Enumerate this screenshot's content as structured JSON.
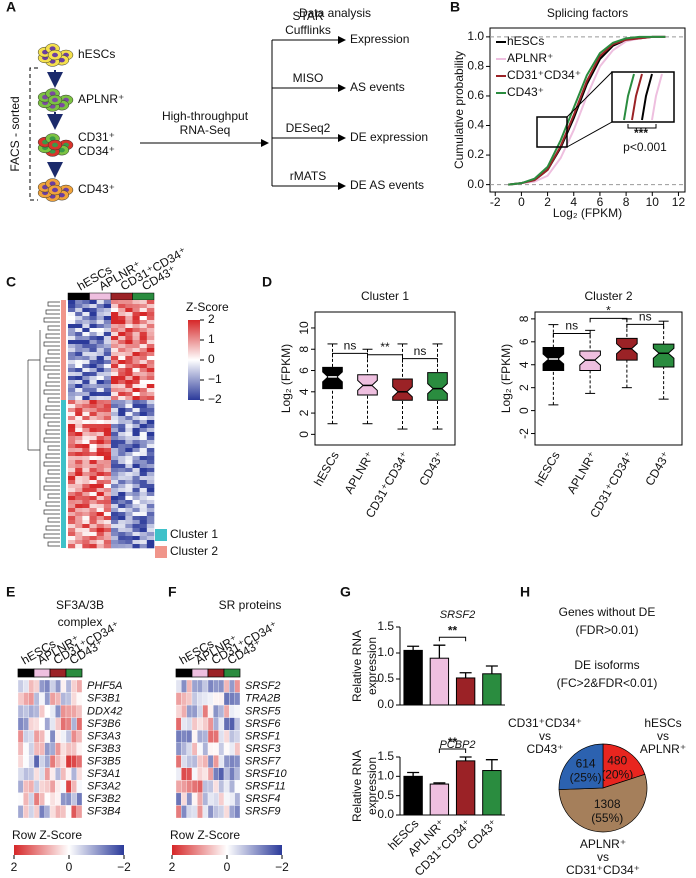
{
  "panel_labels": [
    "A",
    "B",
    "C",
    "D",
    "E",
    "F",
    "G",
    "H"
  ],
  "workflow": {
    "cells": [
      {
        "lines": [
          "hESCs"
        ]
      },
      {
        "lines": [
          "APLNR⁺"
        ]
      },
      {
        "lines": [
          "CD31⁺",
          "CD34⁺"
        ]
      },
      {
        "lines": [
          "CD43⁺"
        ]
      }
    ],
    "sort_label": "FACS - sorted",
    "method_lines": [
      "High-throughput",
      "RNA-Seq"
    ],
    "title": "Data analysis",
    "steps": [
      {
        "tool_lines": [
          "STAR",
          "Cufflinks"
        ],
        "output": "Expression"
      },
      {
        "tool_lines": [
          "MISO"
        ],
        "output": "AS events"
      },
      {
        "tool_lines": [
          "DESeq2"
        ],
        "output": "DE expression"
      },
      {
        "tool_lines": [
          "rMATS"
        ],
        "output": "DE AS events"
      }
    ]
  },
  "heatmap_c": {
    "columns": [
      "hESCs",
      "APLNR⁺",
      "CD31⁺CD34⁺",
      "CD43⁺"
    ],
    "column_colors": [
      "#000000",
      "#eebfdf",
      "#9b2226",
      "#2a8c3f"
    ],
    "colorbar_title": "Z-Score",
    "colorbar_ticks": [
      2,
      1,
      0,
      {
        "value": -1,
        "label": "−1"
      },
      {
        "value": -2,
        "label": "−2"
      }
    ],
    "clusters": [
      {
        "name": "Cluster 1",
        "color": "#3fc1c9"
      },
      {
        "name": "Cluster 2",
        "color": "#f0958a"
      }
    ]
  },
  "heatmap_e": {
    "title_lines": [
      "SF3A/3B",
      "complex"
    ],
    "columns": [
      "hESCs",
      "APLNR⁺",
      "CD31⁺CD34⁺",
      "CD43⁺"
    ],
    "genes": [
      "PHF5A",
      "SF3B1",
      "DDX42",
      "SF3B6",
      "SF3A3",
      "SF3B3",
      "SF3B5",
      "SF3A1",
      "SF3A2",
      "SF3B2",
      "SF3B4"
    ],
    "colorbar_title": "Row Z-Score",
    "colorbar_ticks": [
      2,
      0,
      {
        "value": -2,
        "label": "−2"
      }
    ]
  },
  "heatmap_f": {
    "title_lines": [
      "SR proteins"
    ],
    "columns": [
      "hESCs",
      "APLNR⁺",
      "CD31⁺CD34⁺",
      "CD43⁺"
    ],
    "genes": [
      "SRSF2",
      "TRA2B",
      "SRSF5",
      "SRSF6",
      "SRSF1",
      "SRSF3",
      "SRSF7",
      "SRSF10",
      "SRSF11",
      "SRSF4",
      "SRSF9"
    ],
    "colorbar_title": "Row Z-Score",
    "colorbar_ticks": [
      2,
      0,
      {
        "value": -2,
        "label": "−2"
      }
    ]
  },
  "chart_data": [
    {
      "type": "line",
      "title": "Splicing  factors",
      "xlabel": "Log₂ (FPKM)",
      "ylabel": "Cumulative probability",
      "x": [
        -1,
        0,
        1,
        2,
        3,
        4,
        5,
        6,
        7,
        8,
        9,
        10,
        11
      ],
      "series": [
        {
          "name": "hESCs",
          "color": "#000000",
          "values": [
            0,
            0.01,
            0.03,
            0.1,
            0.25,
            0.45,
            0.68,
            0.85,
            0.94,
            0.98,
            0.99,
            1,
            1
          ]
        },
        {
          "name": "APLNR⁺",
          "color": "#eebfdf",
          "values": [
            0,
            0.01,
            0.02,
            0.06,
            0.18,
            0.37,
            0.6,
            0.8,
            0.91,
            0.97,
            0.99,
            1,
            1
          ]
        },
        {
          "name": "CD31⁺CD34⁺",
          "color": "#9b2226",
          "values": [
            0,
            0.01,
            0.03,
            0.1,
            0.26,
            0.47,
            0.7,
            0.87,
            0.95,
            0.98,
            0.99,
            1,
            1
          ]
        },
        {
          "name": "CD43⁺",
          "color": "#2a8c3f",
          "values": [
            0,
            0.01,
            0.04,
            0.12,
            0.3,
            0.52,
            0.74,
            0.89,
            0.96,
            0.99,
            1,
            1,
            1
          ]
        }
      ],
      "xlim": [
        -2.4,
        12.5
      ],
      "xticks": [
        -2,
        0,
        2,
        4,
        6,
        8,
        10,
        12
      ],
      "ylim": [
        -0.05,
        1.06
      ],
      "yticks": [
        {
          "value": 0,
          "label": "0.0"
        },
        0.2,
        0.4,
        0.6,
        0.8,
        {
          "value": 1,
          "label": "1.0"
        }
      ],
      "legend": "top-left",
      "annotations": [
        "***",
        "p<0.001"
      ]
    },
    {
      "type": "box",
      "title": "Cluster 1",
      "ylabel": "Log₂ (FPKM)",
      "categories": [
        "hESCs",
        "APLNR⁺",
        "CD31⁺CD34⁺",
        "CD43⁺"
      ],
      "colors": [
        "#000000",
        "#eebfdf",
        "#9b2226",
        "#2a8c3f"
      ],
      "boxes": [
        {
          "whisker_low": 1,
          "q1": 4.3,
          "median": 5.4,
          "q3": 6.3,
          "whisker_high": 8.5
        },
        {
          "whisker_low": 1,
          "q1": 3.7,
          "median": 4.6,
          "q3": 5.6,
          "whisker_high": 8
        },
        {
          "whisker_low": 0.5,
          "q1": 3.2,
          "median": 4,
          "q3": 5.2,
          "whisker_high": 8.5
        },
        {
          "whisker_low": 0.5,
          "q1": 3.2,
          "median": 4.3,
          "q3": 5.8,
          "whisker_high": 8.5
        }
      ],
      "ylim": [
        -1,
        11.5
      ],
      "yticks": [
        0,
        2,
        4,
        6,
        8,
        10
      ],
      "comparisons": [
        "ns",
        "**",
        "ns"
      ]
    },
    {
      "type": "box",
      "title": "Cluster 2",
      "ylabel": "Log₂ (FPKM)",
      "categories": [
        "hESCs",
        "APLNR⁺",
        "CD31⁺CD34⁺",
        "CD43⁺"
      ],
      "colors": [
        "#000000",
        "#eebfdf",
        "#9b2226",
        "#2a8c3f"
      ],
      "boxes": [
        {
          "whisker_low": 0.5,
          "q1": 3.5,
          "median": 4.5,
          "q3": 5.5,
          "whisker_high": 7.5
        },
        {
          "whisker_low": 1.5,
          "q1": 3.5,
          "median": 4.4,
          "q3": 5.2,
          "whisker_high": 7
        },
        {
          "whisker_low": 2,
          "q1": 4.4,
          "median": 5.4,
          "q3": 6.3,
          "whisker_high": 8
        },
        {
          "whisker_low": 1,
          "q1": 3.8,
          "median": 5,
          "q3": 5.8,
          "whisker_high": 7.8
        }
      ],
      "ylim": [
        -3,
        8.6
      ],
      "yticks": [
        -2,
        0,
        2,
        4,
        6,
        8
      ],
      "comparisons": [
        "ns",
        "*",
        "ns"
      ]
    },
    {
      "type": "bar",
      "title": "SRSF2",
      "ylabel_lines": [
        "Relative RNA",
        "expression"
      ],
      "values": [
        1.05,
        0.9,
        0.52,
        0.6
      ],
      "errors": [
        0.08,
        0.25,
        0.1,
        0.15
      ],
      "colors": [
        "#000000",
        "#eebfdf",
        "#9b2226",
        "#2a8c3f"
      ],
      "ylim": [
        0,
        1.5
      ],
      "yticks": [
        {
          "value": 0,
          "label": "0.0"
        },
        0.5,
        {
          "value": 1,
          "label": "1.0"
        },
        1.5
      ],
      "annotation": "**"
    },
    {
      "type": "bar",
      "title": "PCBP2",
      "ylabel_lines": [
        "Relative RNA",
        "expression"
      ],
      "categories": [
        "hESCs",
        "APLNR⁺",
        "CD31⁺CD34⁺",
        "CD43⁺"
      ],
      "values": [
        1.0,
        0.8,
        1.4,
        1.15
      ],
      "errors": [
        0.1,
        0.03,
        0.1,
        0.28
      ],
      "colors": [
        "#000000",
        "#eebfdf",
        "#9b2226",
        "#2a8c3f"
      ],
      "ylim": [
        0,
        1.5
      ],
      "yticks": [
        {
          "value": 0,
          "label": "0.0"
        },
        0.5,
        {
          "value": 1,
          "label": "1.0"
        },
        1.5
      ],
      "annotation": "**"
    },
    {
      "type": "pie",
      "title_lines": [
        "Genes without  DE",
        "(FDR>0.01)",
        "DE isoforms",
        "(FC>2&FDR<0.01)"
      ],
      "values": [
        480,
        1308,
        614
      ],
      "percent_labels": [
        "(20%)",
        "(55%)",
        "(25%)"
      ],
      "colors": [
        "#e8251f",
        "#a57f5b",
        "#2c62b0"
      ],
      "slice_names": [
        [
          "hESCs",
          "vs",
          "APLNR⁺"
        ],
        [
          "APLNR⁺",
          "vs",
          "CD31⁺CD34⁺"
        ],
        [
          "CD31⁺CD34⁺",
          "vs",
          "CD43⁺"
        ]
      ]
    }
  ]
}
